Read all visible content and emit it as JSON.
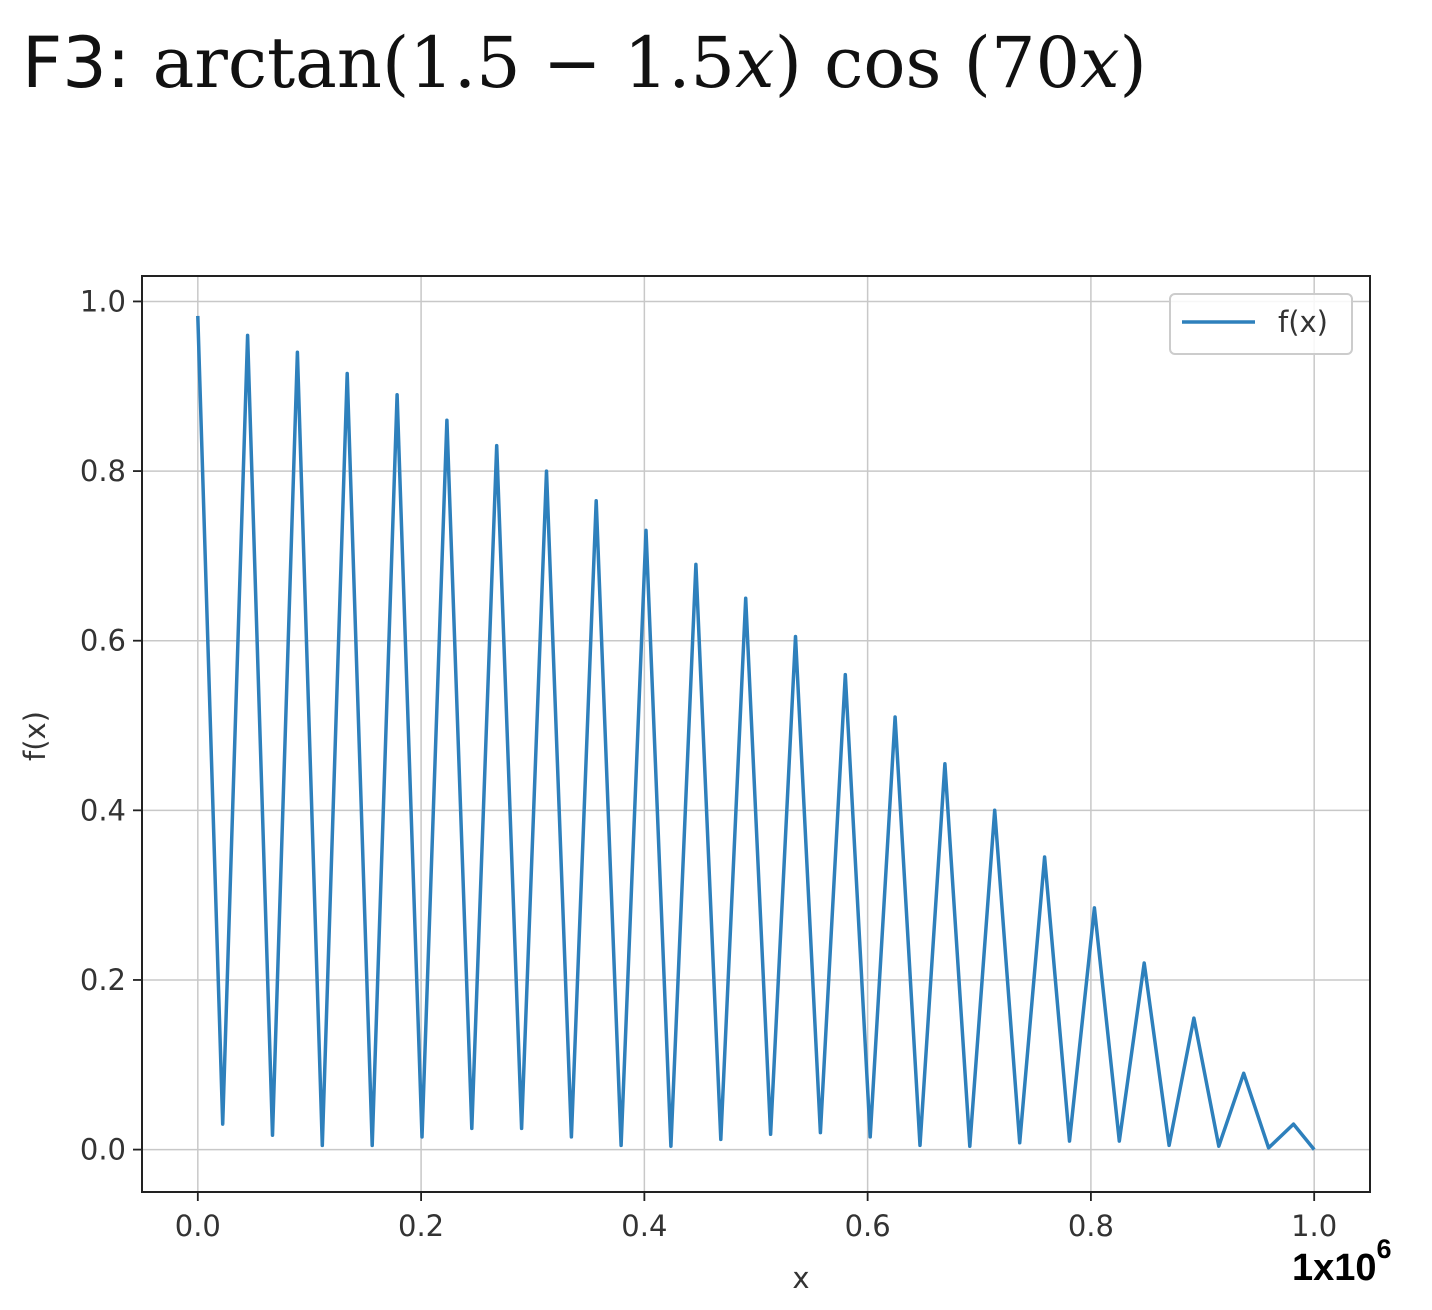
{
  "slide": {
    "title_prefix": "F3: ",
    "title_func": "arctan(1.5 − 1.5",
    "title_var1": "x",
    "title_mid": ") cos (70",
    "title_var2": "x",
    "title_end": ")"
  },
  "scale_note": {
    "base": "1x10",
    "exponent": "6"
  },
  "colors": {
    "line": "#2e80bc",
    "grid": "#c8c8c8",
    "axis": "#222222"
  },
  "chart_data": {
    "type": "line",
    "xlabel": "x",
    "ylabel": "f(x)",
    "xlim": [
      -0.05,
      1.05
    ],
    "ylim": [
      -0.05,
      1.03
    ],
    "xticks": [
      0.0,
      0.2,
      0.4,
      0.6,
      0.8,
      1.0
    ],
    "yticks": [
      0.0,
      0.2,
      0.4,
      0.6,
      0.8,
      1.0
    ],
    "xtick_labels": [
      "0.0",
      "0.2",
      "0.4",
      "0.6",
      "0.8",
      "1.0"
    ],
    "ytick_labels": [
      "0.0",
      "0.2",
      "0.4",
      "0.6",
      "0.8",
      "1.0"
    ],
    "grid": true,
    "legend": {
      "placement": "top-right",
      "entries": [
        "f(x)"
      ]
    },
    "series": [
      {
        "name": "f(x)",
        "x": [
          0.0,
          0.0223,
          0.0446,
          0.0669,
          0.0892,
          0.1115,
          0.1338,
          0.1562,
          0.1785,
          0.2008,
          0.2231,
          0.2454,
          0.2677,
          0.29,
          0.3123,
          0.3346,
          0.3569,
          0.3792,
          0.4015,
          0.4238,
          0.4462,
          0.4685,
          0.4908,
          0.5131,
          0.5354,
          0.5577,
          0.58,
          0.6023,
          0.6246,
          0.6469,
          0.6692,
          0.6915,
          0.7138,
          0.7362,
          0.7585,
          0.7808,
          0.8031,
          0.8254,
          0.8477,
          0.87,
          0.8923,
          0.9146,
          0.9369,
          0.9592,
          0.9815,
          1.0
        ],
        "y": [
          0.983,
          0.03,
          0.96,
          0.017,
          0.94,
          0.005,
          0.915,
          0.005,
          0.89,
          0.015,
          0.86,
          0.025,
          0.83,
          0.025,
          0.8,
          0.015,
          0.765,
          0.005,
          0.73,
          0.004,
          0.69,
          0.012,
          0.65,
          0.018,
          0.605,
          0.02,
          0.56,
          0.015,
          0.51,
          0.005,
          0.455,
          0.004,
          0.4,
          0.008,
          0.345,
          0.01,
          0.285,
          0.01,
          0.22,
          0.005,
          0.155,
          0.004,
          0.09,
          0.002,
          0.03,
          0.0
        ]
      }
    ]
  }
}
